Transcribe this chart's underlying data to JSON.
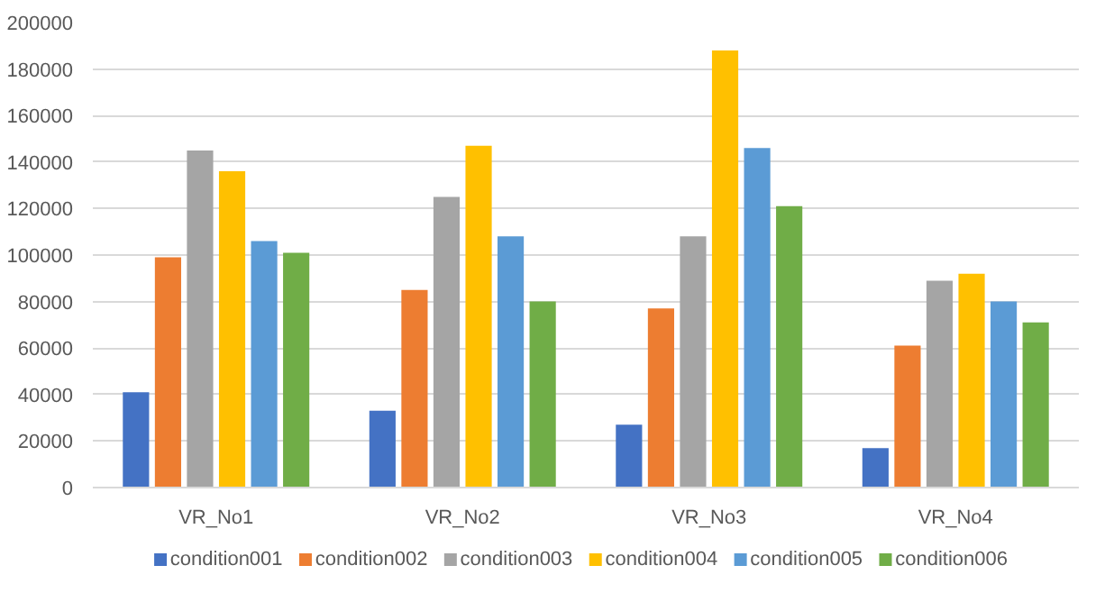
{
  "chart_data": {
    "type": "bar",
    "categories": [
      "VR_No1",
      "VR_No2",
      "VR_No3",
      "VR_No4"
    ],
    "series": [
      {
        "name": "condition001",
        "color": "#4472c4",
        "values": [
          41000,
          33000,
          27000,
          17000
        ]
      },
      {
        "name": "condition002",
        "color": "#ed7d31",
        "values": [
          99000,
          85000,
          77000,
          61000
        ]
      },
      {
        "name": "condition003",
        "color": "#a5a5a5",
        "values": [
          145000,
          125000,
          108000,
          89000
        ]
      },
      {
        "name": "condition004",
        "color": "#ffc000",
        "values": [
          136000,
          147000,
          188000,
          92000
        ]
      },
      {
        "name": "condition005",
        "color": "#5b9bd5",
        "values": [
          106000,
          108000,
          146000,
          80000
        ]
      },
      {
        "name": "condition006",
        "color": "#70ad47",
        "values": [
          101000,
          80000,
          121000,
          71000
        ]
      }
    ],
    "ylim": [
      0,
      200000
    ],
    "yticks": [
      0,
      20000,
      40000,
      60000,
      80000,
      100000,
      120000,
      140000,
      160000,
      180000,
      200000
    ],
    "grid": "y",
    "legend": "bottom"
  }
}
